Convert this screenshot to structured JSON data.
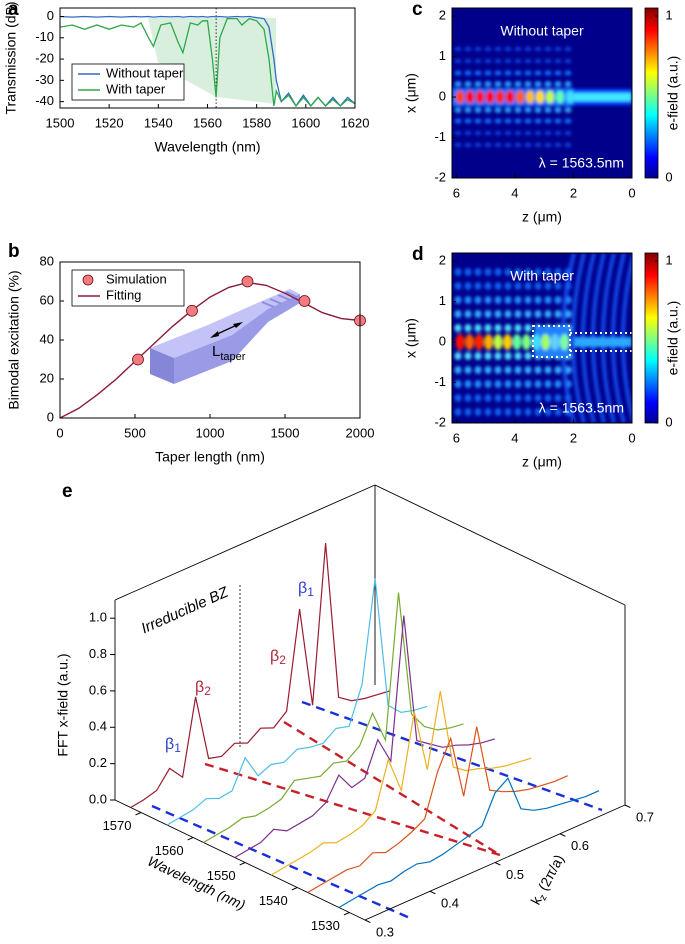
{
  "chart_data": [
    {
      "type": "line",
      "panel": "a",
      "xlabel": "Wavelength (nm)",
      "ylabel": "Transmission (dB)",
      "x": [
        1500,
        1505,
        1510,
        1515,
        1520,
        1525,
        1530,
        1533,
        1536,
        1538,
        1541,
        1545,
        1548,
        1550,
        1553,
        1556,
        1558,
        1560,
        1562,
        1563.5,
        1565,
        1568,
        1572,
        1574,
        1577,
        1580,
        1583,
        1585,
        1587,
        1588,
        1590,
        1593,
        1596,
        1599,
        1602,
        1605,
        1608,
        1611,
        1614,
        1617,
        1620
      ],
      "xlim": [
        1500,
        1620
      ],
      "xticks": [
        1500,
        1520,
        1540,
        1560,
        1580,
        1600,
        1620
      ],
      "ylim": [
        -43,
        4
      ],
      "yticks": [
        0,
        -10,
        -20,
        -30,
        -40
      ],
      "vline": 1563.5,
      "legend": "lower left",
      "series": [
        {
          "name": "Without taper",
          "color": "#2e6cc4",
          "values": [
            0,
            -0.3,
            0,
            -0.3,
            0,
            -0.3,
            0,
            -0.2,
            0,
            -0.3,
            0,
            -0.2,
            0,
            -0.3,
            0,
            -0.2,
            0,
            -0.3,
            0,
            -0.2,
            0,
            -0.3,
            0,
            -0.2,
            0,
            -0.5,
            -1,
            -5,
            -20,
            -30,
            -40,
            -36,
            -42,
            -37,
            -42,
            -38,
            -42,
            -38,
            -42,
            -38,
            -41
          ]
        },
        {
          "name": "With taper",
          "color": "#2ea84a",
          "values": [
            -5,
            -4,
            -6,
            -4,
            -6,
            -4,
            -5,
            -3,
            -10,
            -14,
            -4,
            -3,
            -12,
            -17,
            -3,
            -4,
            -2,
            -2,
            -20,
            -38,
            -10,
            -1,
            -1,
            -4,
            -1,
            -2,
            -6,
            -20,
            -42,
            -35,
            -40,
            -37,
            -42,
            -38,
            -42,
            -38,
            -42,
            -39,
            -42,
            -39,
            -41
          ]
        }
      ]
    },
    {
      "type": "scatter",
      "panel": "b",
      "xlabel": "Taper length (nm)",
      "ylabel": "Bimodal excitation (%)",
      "xlim": [
        0,
        2000
      ],
      "xticks": [
        0,
        500,
        1000,
        1500,
        2000
      ],
      "ylim": [
        0,
        80
      ],
      "yticks": [
        0,
        20,
        40,
        60,
        80
      ],
      "legend": "upper left",
      "inset_label": "L",
      "inset_label_sub": "taper",
      "series": [
        {
          "name": "Simulation",
          "style": "marker",
          "color": "#f27b80",
          "x": [
            520,
            880,
            1250,
            1630,
            2000
          ],
          "values": [
            30,
            55,
            70,
            60,
            50
          ]
        },
        {
          "name": "Fitting",
          "style": "line",
          "color": "#8c1a3c",
          "x": [
            0,
            125,
            250,
            375,
            500,
            625,
            750,
            875,
            1000,
            1125,
            1250,
            1375,
            1500,
            1625,
            1750,
            1875,
            2000
          ],
          "values": [
            0,
            5,
            12,
            20,
            29,
            38,
            47,
            55,
            62,
            67,
            69.5,
            68,
            64,
            59,
            54,
            51,
            50
          ]
        }
      ]
    },
    {
      "type": "heatmap",
      "panel": "c",
      "title": "Without taper",
      "annotation": "λ = 1563.5nm",
      "xlabel": "z (μm)",
      "ylabel": "x (μm)",
      "xlim": [
        6.15,
        0
      ],
      "xticks": [
        6,
        4,
        2,
        0
      ],
      "ylim": [
        -2,
        2.2
      ],
      "yticks": [
        -2,
        -1,
        0,
        1,
        2
      ],
      "colorbar_label": "e-field (a.u.)",
      "colormap": "jet",
      "clim": [
        0,
        1.05
      ],
      "cticks": [
        0,
        1
      ]
    },
    {
      "type": "heatmap",
      "panel": "d",
      "title": "With taper",
      "annotation": "λ = 1563.5nm",
      "xlabel": "z (μm)",
      "ylabel": "x (μm)",
      "xlim": [
        6.15,
        0
      ],
      "xticks": [
        6,
        4,
        2,
        0
      ],
      "ylim": [
        -2,
        2.2
      ],
      "yticks": [
        -2,
        -1,
        0,
        1,
        2
      ],
      "colorbar_label": "e-field (a.u.)",
      "colormap": "jet",
      "clim": [
        0,
        1.05
      ],
      "cticks": [
        0,
        1
      ]
    },
    {
      "type": "waterfall3d",
      "panel": "e",
      "zlabel": "FFT x-field (a.u.)",
      "ylabel": "Wavelength (nm)",
      "xlabel": "k",
      "xlabel_sub": "z",
      "xlabel_unit": "(2π/a)",
      "x": [
        0.3,
        0.32,
        0.34,
        0.36,
        0.38,
        0.4,
        0.42,
        0.44,
        0.46,
        0.48,
        0.5,
        0.52,
        0.54,
        0.56,
        0.58,
        0.6,
        0.62,
        0.64,
        0.66,
        0.68,
        0.7
      ],
      "xlim": [
        0.3,
        0.7
      ],
      "xticks": [
        0.3,
        0.4,
        0.5,
        0.6,
        0.7
      ],
      "ylim": [
        1527,
        1575
      ],
      "yticks": [
        1530,
        1540,
        1550,
        1560,
        1570
      ],
      "zlim": [
        0,
        1.1
      ],
      "zticks": [
        {
          "value": 0,
          "label": "0.0"
        },
        0.2,
        0.4,
        0.6,
        0.8,
        {
          "value": 1,
          "label": "1.0"
        }
      ],
      "annotation": "Irreducible BZ",
      "peak_labels": [
        {
          "text": "β",
          "sub": "1",
          "color": "#2b3fd0"
        },
        {
          "text": "β",
          "sub": "2",
          "color": "#b0283a"
        },
        {
          "text": "β",
          "sub": "2",
          "color": "#b0283a"
        },
        {
          "text": "β",
          "sub": "1",
          "color": "#2b3fd0"
        }
      ],
      "series": [
        {
          "wavelength": 1572,
          "color": "#9b1b30",
          "values": [
            0,
            0.01,
            0.03,
            0.12,
            0.04,
            0.45,
            0.08,
            0.06,
            0.1,
            0.07,
            0.12,
            0.09,
            0.15,
            0.68,
            0.12,
            0.98,
            0.1,
            0.05,
            0.03,
            0.02,
            0.01
          ]
        },
        {
          "wavelength": 1565,
          "color": "#4dbee8",
          "values": [
            0,
            0.01,
            0.02,
            0.05,
            0.02,
            0.03,
            0.18,
            0.05,
            0.08,
            0.06,
            0.1,
            0.08,
            0.07,
            0.12,
            0.1,
            0.3,
            0.85,
            0.12,
            0.05,
            0.03,
            0.02
          ]
        },
        {
          "wavelength": 1558,
          "color": "#77ac30",
          "values": [
            0,
            0.01,
            0.02,
            0.04,
            0.02,
            0.03,
            0.05,
            0.12,
            0.1,
            0.08,
            0.12,
            0.1,
            0.15,
            0.3,
            0.12,
            0.9,
            0.2,
            0.1,
            0.05,
            0.03,
            0.02
          ]
        },
        {
          "wavelength": 1552,
          "color": "#7e2f8e",
          "values": [
            0,
            0.01,
            0.02,
            0.06,
            0.02,
            0.03,
            0.04,
            0.08,
            0.2,
            0.1,
            0.12,
            0.3,
            0.15,
            0.92,
            0.2,
            0.15,
            0.1,
            0.08,
            0.05,
            0.03,
            0.02
          ]
        },
        {
          "wavelength": 1545,
          "color": "#edb120",
          "values": [
            0,
            0.01,
            0.02,
            0.03,
            0.05,
            0.02,
            0.03,
            0.05,
            0.1,
            0.35,
            0.15,
            0.55,
            0.2,
            0.6,
            0.15,
            0.1,
            0.08,
            0.05,
            0.03,
            0.02,
            0.01
          ]
        },
        {
          "wavelength": 1538,
          "color": "#d95319",
          "values": [
            0,
            0.01,
            0.02,
            0.03,
            0.02,
            0.06,
            0.03,
            0.05,
            0.08,
            0.12,
            0.35,
            0.5,
            0.15,
            0.5,
            0.12,
            0.08,
            0.05,
            0.03,
            0.02,
            0.01,
            0.01
          ]
        },
        {
          "wavelength": 1532,
          "color": "#0072bd",
          "values": [
            0,
            0.01,
            0.02,
            0.03,
            0.02,
            0.04,
            0.05,
            0.03,
            0.04,
            0.06,
            0.08,
            0.1,
            0.25,
            0.3,
            0.1,
            0.06,
            0.04,
            0.03,
            0.02,
            0.01,
            0.01
          ]
        }
      ]
    }
  ]
}
